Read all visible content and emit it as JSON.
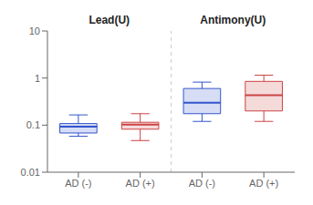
{
  "chart_data": {
    "type": "box",
    "categories": [
      "AD (-)",
      "AD (+)",
      "AD (-)",
      "AD (+)"
    ],
    "values": [
      {
        "q1": 0.068,
        "median": 0.093,
        "q3": 0.108,
        "whisker_low": 0.058,
        "whisker_high": 0.165
      },
      {
        "q1": 0.082,
        "median": 0.103,
        "q3": 0.115,
        "whisker_low": 0.047,
        "whisker_high": 0.175
      },
      {
        "q1": 0.175,
        "median": 0.3,
        "q3": 0.6,
        "whisker_low": 0.12,
        "whisker_high": 0.82
      },
      {
        "q1": 0.2,
        "median": 0.43,
        "q3": 0.85,
        "whisker_low": 0.12,
        "whisker_high": 1.15
      }
    ],
    "colors": [
      "#3355cc",
      "#cc4444",
      "#3355cc",
      "#cc4444"
    ],
    "annotations": [
      "Lead(U)",
      "Antimony(U)"
    ],
    "log": "y",
    "ylim": [
      0.01,
      10
    ],
    "yticks": [
      0.01,
      0.1,
      1,
      10
    ],
    "grid": false
  }
}
